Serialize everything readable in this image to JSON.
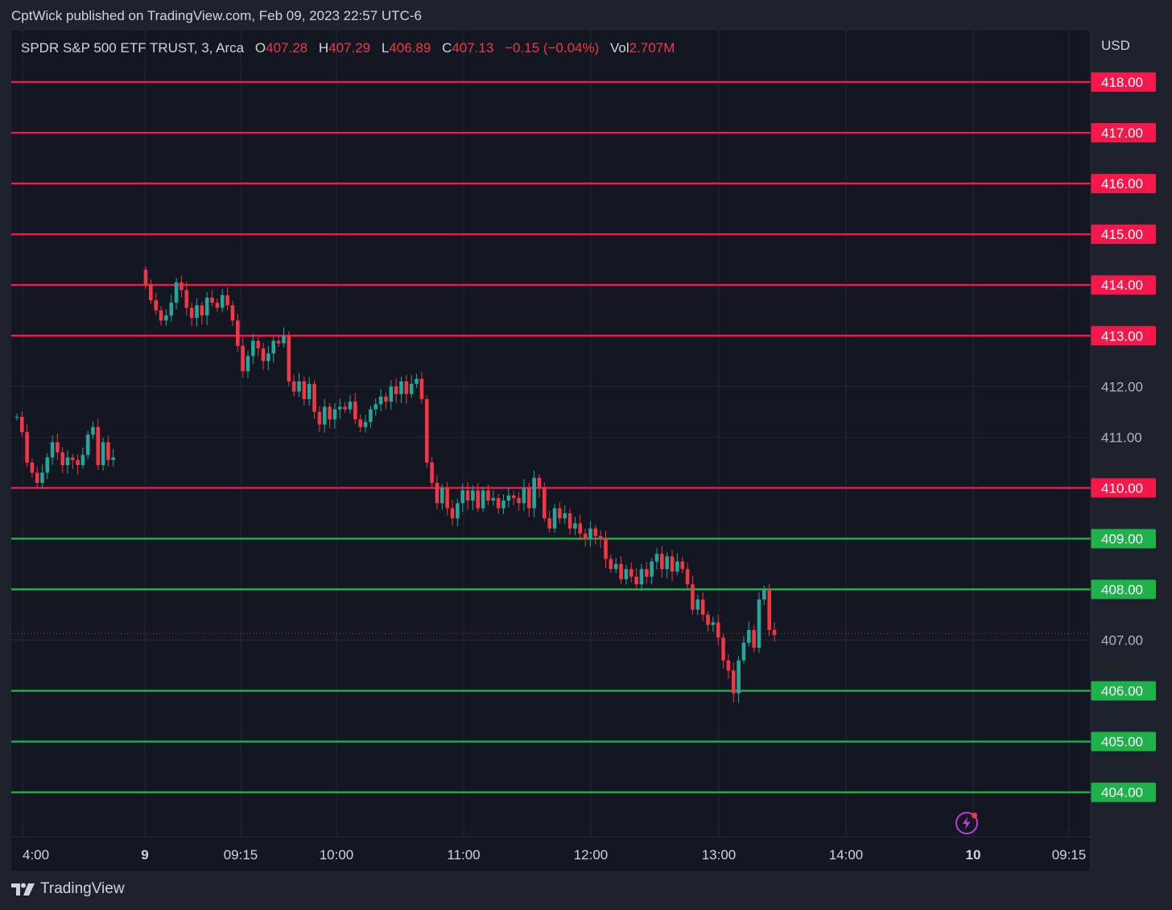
{
  "header": {
    "text": "CptWick published on TradingView.com, Feb 09, 2023 22:57 UTC-6"
  },
  "legend": {
    "symbol": "SPDR S&P 500 ETF TRUST, 3, Arca",
    "open_label": "O",
    "open": "407.28",
    "high_label": "H",
    "high": "407.29",
    "low_label": "L",
    "low": "406.89",
    "close_label": "C",
    "close": "407.13",
    "change": "−0.15 (−0.04%)",
    "vol_label": "Vol",
    "vol": "2.707M"
  },
  "price_axis": {
    "currency": "USD"
  },
  "footer": {
    "brand": "TradingView",
    "logo_icon": "tradingview-logo-icon",
    "alert_icon": "lightning-bolt-icon"
  },
  "colors": {
    "background": "#131722",
    "frame": "#1e222d",
    "up": "#26a69a",
    "down": "#f23645",
    "resistance": "#f7184b",
    "support": "#1fb24a",
    "grid": "#262a35"
  },
  "chart_data": {
    "type": "candlestick",
    "ylim": [
      403.15,
      418.75
    ],
    "y_ticks": [
      "418.00",
      "417.00",
      "416.00",
      "415.00",
      "414.00",
      "413.00",
      "412.00",
      "411.00",
      "410.00",
      "409.00",
      "408.00",
      "407.00",
      "406.00",
      "405.00",
      "404.00"
    ],
    "x_ticks": [
      {
        "label": "4:00",
        "bold": false
      },
      {
        "label": "9",
        "bold": true
      },
      {
        "label": "09:15",
        "bold": false
      },
      {
        "label": "10:00",
        "bold": false
      },
      {
        "label": "11:00",
        "bold": false
      },
      {
        "label": "12:00",
        "bold": false
      },
      {
        "label": "13:00",
        "bold": false
      },
      {
        "label": "14:00",
        "bold": false
      },
      {
        "label": "10",
        "bold": true
      },
      {
        "label": "09:15",
        "bold": false
      }
    ],
    "resistance_levels": [
      418,
      417,
      416,
      415,
      414,
      413,
      410
    ],
    "support_levels": [
      409,
      408,
      406,
      405,
      404
    ],
    "last_price": 407.13,
    "segments": [
      {
        "session": "previous-day-extended",
        "start": 411.4,
        "values": [
          411.4,
          411.1,
          410.5,
          410.3,
          410.1,
          410.3,
          410.6,
          410.9,
          410.7,
          410.45,
          410.6,
          410.55,
          410.45,
          410.65,
          411.05,
          411.2,
          410.45,
          410.9,
          410.55,
          410.6
        ]
      },
      {
        "session": "regular-9",
        "start": 414.3,
        "values": [
          414.0,
          413.7,
          413.5,
          413.3,
          413.4,
          413.65,
          414.05,
          413.9,
          413.55,
          413.35,
          413.6,
          413.4,
          413.75,
          413.65,
          413.55,
          413.8,
          413.6,
          413.3,
          412.8,
          412.3,
          412.6,
          412.9,
          412.75,
          412.5,
          412.65,
          412.9,
          412.85,
          413.0,
          412.1,
          411.9,
          412.1,
          411.75,
          412.05,
          411.5,
          411.25,
          411.6,
          411.35,
          411.55,
          411.6,
          411.55,
          411.7,
          411.35,
          411.2,
          411.3,
          411.55,
          411.65,
          411.8,
          411.7,
          412.0,
          411.85,
          412.1,
          411.85,
          412.05,
          412.15,
          411.75,
          410.5,
          410.1,
          409.7,
          410.0,
          409.6,
          409.4,
          409.7,
          409.95,
          409.75,
          409.95,
          409.6,
          409.95,
          409.75,
          409.8,
          409.6,
          409.75,
          409.85,
          409.8,
          409.7,
          410.0,
          409.6,
          410.2,
          410.0,
          409.4,
          409.2,
          409.6,
          409.4,
          409.5,
          409.2,
          409.3,
          409.1,
          409.0,
          409.2,
          409.05,
          409.0,
          408.6,
          408.4,
          408.5,
          408.2,
          408.4,
          408.25,
          408.1,
          408.4,
          408.25,
          408.55,
          408.7,
          408.4,
          408.65,
          408.35,
          408.55,
          408.4,
          408.1,
          407.6,
          407.8,
          407.5,
          407.3,
          407.35,
          407.05,
          406.6,
          406.4,
          405.95,
          406.6,
          406.95,
          407.2,
          406.85,
          407.8,
          408.0,
          407.2,
          407.1
        ]
      }
    ]
  }
}
